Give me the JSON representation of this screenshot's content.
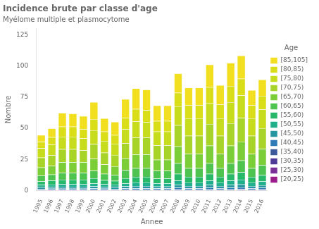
{
  "chart_data": {
    "type": "bar",
    "stacked": true,
    "title": "Incidence brute par classe d'age",
    "subtitle": "Myélome multiple et plasmocytome",
    "x_label": "Annee",
    "y_label": "Nombre",
    "legend": "right",
    "legend_title": "Age",
    "grid": false,
    "ylim": [
      0,
      130
    ],
    "yticks": [
      0,
      25,
      50,
      75,
      100,
      125
    ],
    "categories": [
      "1995",
      "1996",
      "1997",
      "1998",
      "1999",
      "2000",
      "2001",
      "2002",
      "2003",
      "2004",
      "2005",
      "2006",
      "2007",
      "2008",
      "2009",
      "2010",
      "2011",
      "2012",
      "2013",
      "2014",
      "2015",
      "2016"
    ],
    "series": [
      {
        "name": "[20,25)",
        "color": "#9B1D8A",
        "values": [
          0.05,
          0.05,
          0.05,
          0.05,
          0.05,
          0.05,
          0.05,
          0.05,
          0.05,
          0.05,
          0.05,
          0.05,
          0.05,
          0.05,
          0.05,
          0.05,
          0.05,
          0.05,
          0.05,
          0.05,
          0.05,
          0.05
        ]
      },
      {
        "name": "[25,30)",
        "color": "#7B3098",
        "values": [
          0.1,
          0.1,
          0.1,
          0.1,
          0.1,
          0.1,
          0.1,
          0.1,
          0.1,
          0.1,
          0.1,
          0.1,
          0.1,
          0.1,
          0.1,
          0.1,
          0.1,
          0.1,
          0.1,
          0.15,
          0.1,
          0.1
        ]
      },
      {
        "name": "[30,35)",
        "color": "#4E3B99",
        "values": [
          0.2,
          0.2,
          0.2,
          0.2,
          0.2,
          0.2,
          0.2,
          0.2,
          0.2,
          0.2,
          0.2,
          0.2,
          0.2,
          0.3,
          0.2,
          0.2,
          0.3,
          0.2,
          0.3,
          0.3,
          0.2,
          0.3
        ]
      },
      {
        "name": "[35,40)",
        "color": "#3A5A9B",
        "values": [
          0.4,
          0.4,
          0.4,
          0.4,
          0.4,
          0.5,
          0.4,
          0.4,
          0.5,
          0.5,
          0.5,
          0.4,
          0.4,
          0.6,
          0.5,
          0.5,
          0.6,
          0.5,
          0.6,
          0.7,
          0.5,
          0.6
        ]
      },
      {
        "name": "[40,45)",
        "color": "#2E7BB5",
        "values": [
          0.7,
          0.8,
          0.8,
          0.8,
          0.8,
          0.9,
          0.8,
          0.7,
          0.9,
          1.0,
          1.0,
          0.9,
          0.9,
          1.2,
          1.0,
          1.0,
          1.2,
          1.0,
          1.2,
          1.3,
          1.0,
          1.2
        ]
      },
      {
        "name": "[45,50)",
        "color": "#2596A0",
        "values": [
          1.2,
          1.3,
          1.5,
          1.5,
          1.5,
          1.6,
          1.4,
          1.3,
          1.6,
          1.8,
          1.8,
          1.6,
          1.6,
          2.2,
          1.8,
          1.8,
          2.2,
          1.8,
          2.2,
          2.4,
          1.8,
          2.0
        ]
      },
      {
        "name": "[50,55)",
        "color": "#1FAF8A",
        "values": [
          1.8,
          2.0,
          2.2,
          2.2,
          2.2,
          2.5,
          2.1,
          2.0,
          2.5,
          2.8,
          2.8,
          2.5,
          2.5,
          3.5,
          2.8,
          2.8,
          3.5,
          2.8,
          3.5,
          3.8,
          2.8,
          3.2
        ]
      },
      {
        "name": "[55,60)",
        "color": "#27B86A",
        "values": [
          3.0,
          3.2,
          3.5,
          3.5,
          3.5,
          4.0,
          3.3,
          3.0,
          4.0,
          4.5,
          4.5,
          4.0,
          4.0,
          5.5,
          4.5,
          4.5,
          5.5,
          4.5,
          5.5,
          6.0,
          4.5,
          5.0
        ]
      },
      {
        "name": "[60,65)",
        "color": "#4EC350",
        "values": [
          4.5,
          4.8,
          5.5,
          5.5,
          5.5,
          6.0,
          5.0,
          4.8,
          6.5,
          7.0,
          7.0,
          6.0,
          6.0,
          8.5,
          7.0,
          7.0,
          8.5,
          7.0,
          8.5,
          9.5,
          7.0,
          8.0
        ]
      },
      {
        "name": "[65,70)",
        "color": "#7BCE38",
        "values": [
          6.5,
          7.0,
          8.5,
          8.5,
          8.5,
          9.5,
          7.5,
          7.0,
          9.5,
          11.0,
          11.0,
          9.0,
          9.0,
          13.5,
          11.5,
          11.5,
          14.0,
          11.5,
          14.0,
          15.0,
          11.5,
          13.0
        ]
      },
      {
        "name": "[70,75)",
        "color": "#A8D42A",
        "values": [
          8.0,
          8.5,
          10.5,
          10.5,
          9.5,
          12.0,
          9.5,
          9.0,
          12.0,
          13.5,
          13.5,
          11.5,
          11.5,
          17.0,
          14.5,
          14.5,
          17.5,
          14.5,
          18.0,
          19.0,
          14.5,
          16.5
        ]
      },
      {
        "name": "[75,80)",
        "color": "#C8DC1E",
        "values": [
          7.5,
          8.5,
          10.0,
          10.0,
          9.5,
          11.0,
          9.5,
          9.0,
          11.5,
          13.0,
          12.5,
          11.0,
          11.0,
          15.0,
          14.0,
          14.0,
          16.5,
          14.0,
          17.0,
          18.0,
          14.0,
          15.0
        ]
      },
      {
        "name": "[80,85)",
        "color": "#DADE18",
        "values": [
          5.0,
          6.0,
          8.0,
          8.0,
          7.5,
          9.0,
          7.5,
          7.0,
          9.0,
          10.0,
          9.5,
          8.5,
          8.5,
          11.0,
          10.5,
          10.5,
          13.0,
          11.0,
          13.0,
          13.5,
          10.5,
          11.0
        ]
      },
      {
        "name": "[85,105]",
        "color": "#F2E020",
        "values": [
          5.5,
          7.0,
          11.0,
          10.5,
          10.5,
          13.5,
          10.5,
          10.5,
          15.0,
          16.5,
          16.5,
          12.5,
          12.5,
          15.5,
          14.0,
          14.0,
          18.0,
          15.5,
          18.5,
          18.5,
          12.0,
          13.0
        ]
      }
    ]
  }
}
